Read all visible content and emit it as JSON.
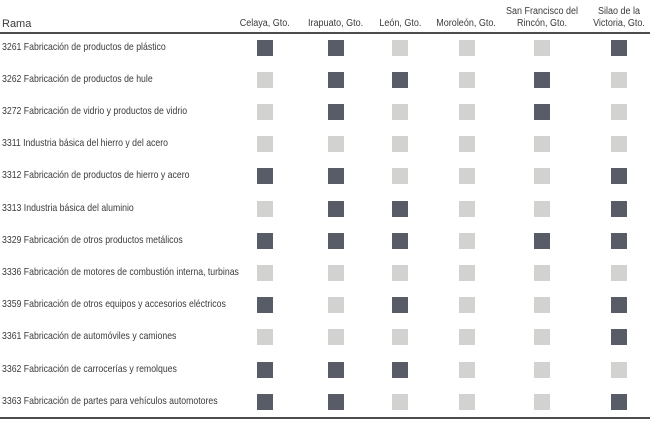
{
  "colors": {
    "present": "#575c66",
    "absent": "#d2d2d0",
    "rule": "#4d4d4d",
    "text": "#3a3a3a"
  },
  "chart_data": {
    "type": "heatmap",
    "row_header_label": "Rama",
    "columns": [
      "Celaya, Gto.",
      "Irapuato, Gto.",
      "León, Gto.",
      "Moroleón, Gto.",
      "San Francisco del Rincón, Gto.",
      "Silao de la Victoria, Gto."
    ],
    "value_encoding": {
      "1": "dark square",
      "0": "light square"
    },
    "rows": [
      {
        "label": "3261 Fabricación de productos de plástico",
        "values": [
          1,
          1,
          0,
          0,
          0,
          1
        ]
      },
      {
        "label": "3262 Fabricación de productos de hule",
        "values": [
          0,
          1,
          1,
          0,
          1,
          0
        ]
      },
      {
        "label": "3272 Fabricación de vidrio y productos de vidrio",
        "values": [
          0,
          1,
          0,
          0,
          1,
          0
        ]
      },
      {
        "label": "3311 Industria básica del hierro y del acero",
        "values": [
          0,
          0,
          0,
          0,
          0,
          0
        ]
      },
      {
        "label": "3312 Fabricación de productos de hierro y acero",
        "values": [
          1,
          1,
          0,
          0,
          0,
          1
        ]
      },
      {
        "label": "3313 Industria básica del aluminio",
        "values": [
          0,
          1,
          1,
          0,
          0,
          1
        ]
      },
      {
        "label": "3329 Fabricación de otros productos metálicos",
        "values": [
          1,
          1,
          1,
          0,
          1,
          1
        ]
      },
      {
        "label": "3336 Fabricación de motores de combustión interna, turbinas",
        "values": [
          0,
          0,
          0,
          0,
          0,
          0
        ]
      },
      {
        "label": "3359 Fabricación de otros equipos y accesorios eléctricos",
        "values": [
          1,
          0,
          1,
          0,
          0,
          1
        ]
      },
      {
        "label": "3361 Fabricación de automóviles y camiones",
        "values": [
          0,
          0,
          0,
          0,
          0,
          1
        ]
      },
      {
        "label": "3362 Fabricación de carrocerías y remolques",
        "values": [
          1,
          1,
          1,
          0,
          0,
          0
        ]
      },
      {
        "label": "3363 Fabricación de partes para vehículos automotores",
        "values": [
          1,
          1,
          0,
          0,
          0,
          1
        ]
      }
    ]
  }
}
